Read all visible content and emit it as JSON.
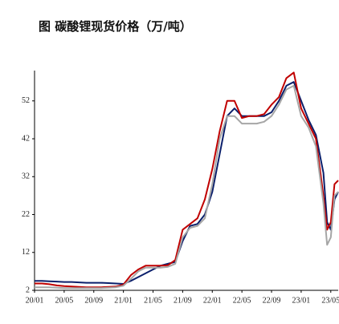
{
  "chart_data": {
    "type": "line",
    "title": "图  碳酸锂现货价格（万/吨）",
    "x": [
      0,
      1,
      2,
      3,
      4,
      5,
      6,
      7,
      8,
      9,
      10,
      11,
      12,
      13,
      14,
      15,
      16,
      17,
      18,
      19,
      20,
      21,
      22,
      23,
      24,
      25,
      26,
      27,
      28,
      29,
      30,
      31,
      32,
      33,
      34,
      35,
      36,
      37,
      38,
      39,
      39.5,
      40,
      40.5,
      41
    ],
    "xlim": [
      0,
      41
    ],
    "xticks": [
      {
        "value": 0,
        "label": "20/01"
      },
      {
        "value": 4,
        "label": "20/05"
      },
      {
        "value": 8,
        "label": "20/09"
      },
      {
        "value": 12,
        "label": "21/01"
      },
      {
        "value": 16,
        "label": "21/05"
      },
      {
        "value": 20,
        "label": "21/09"
      },
      {
        "value": 24,
        "label": "22/01"
      },
      {
        "value": 28,
        "label": "22/05"
      },
      {
        "value": 32,
        "label": "22/09"
      },
      {
        "value": 36,
        "label": "23/01"
      },
      {
        "value": 40,
        "label": "23/05"
      }
    ],
    "ylim": [
      2,
      60
    ],
    "yticks": [
      2,
      12,
      22,
      32,
      42,
      52
    ],
    "series": [
      {
        "color": "#0b1f6b",
        "values": [
          4.5,
          4.5,
          4.4,
          4.3,
          4.2,
          4.2,
          4.1,
          4,
          4,
          4,
          3.9,
          3.8,
          3.7,
          4.5,
          5.5,
          6.5,
          7.5,
          8.5,
          9,
          9.5,
          15,
          19,
          19.5,
          22,
          28,
          38,
          48,
          50,
          48,
          48,
          48,
          48,
          49,
          52,
          56,
          57,
          52,
          47,
          43,
          33,
          20,
          18,
          26,
          28
        ]
      },
      {
        "color": "#c00000",
        "values": [
          3.8,
          3.8,
          3.6,
          3.3,
          3.1,
          3,
          2.9,
          2.8,
          2.8,
          2.8,
          2.9,
          3,
          3.5,
          6,
          7.5,
          8.5,
          8.5,
          8.5,
          8.6,
          10,
          18,
          19.5,
          21,
          26,
          34,
          44,
          52,
          52,
          47.5,
          48,
          48,
          48.5,
          51,
          53,
          58,
          59.5,
          50,
          46,
          42,
          27,
          18,
          20,
          30,
          31
        ]
      },
      {
        "color": "#a6a6a6",
        "values": [
          2.8,
          2.8,
          2.8,
          2.7,
          2.6,
          2.6,
          2.6,
          2.6,
          2.6,
          2.6,
          2.7,
          2.8,
          3.2,
          5,
          7,
          8,
          8,
          8,
          8.2,
          9,
          16,
          18.5,
          19,
          21,
          30,
          42,
          48,
          48,
          46,
          46,
          46,
          46.5,
          48,
          51,
          55,
          56,
          48,
          45,
          40,
          25,
          14,
          16,
          27,
          28
        ]
      }
    ]
  }
}
